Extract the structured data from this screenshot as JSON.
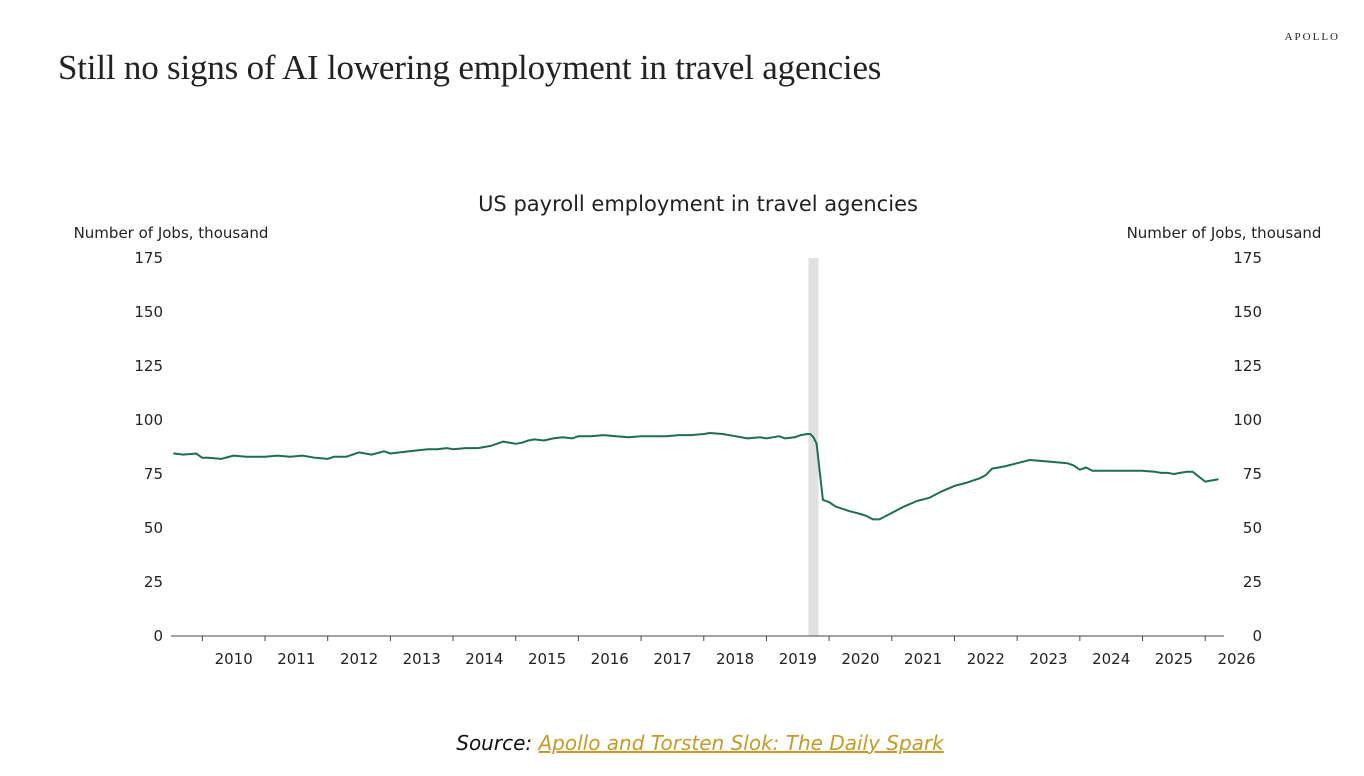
{
  "headline": "Still no signs of AI lowering employment in travel agencies",
  "brand": "APOLLO",
  "source": {
    "prefix": "Source: ",
    "link_text": "Apollo and Torsten Slok: The Daily Spark"
  },
  "colors": {
    "line": "#1f6e4f",
    "recession": "#e0e0e0",
    "link": "#c59a2a"
  },
  "chart_data": {
    "type": "line",
    "title": "US payroll employment in travel agencies",
    "ylabel_left": "Number of Jobs, thousand",
    "ylabel_right": "Number of Jobs, thousand",
    "ylim": [
      0,
      175
    ],
    "yticks": [
      0,
      25,
      50,
      75,
      100,
      125,
      150,
      175
    ],
    "xticks": [
      "2010",
      "2011",
      "2012",
      "2013",
      "2014",
      "2015",
      "2016",
      "2017",
      "2018",
      "2019",
      "2020",
      "2021",
      "2022",
      "2023",
      "2024",
      "2025",
      "2026"
    ],
    "xlim": [
      2009.5,
      2026.3
    ],
    "grid": false,
    "shaded_period": {
      "start": 2019.67,
      "end": 2019.83
    },
    "series": [
      {
        "x": [
          2009.55,
          2009.7,
          2009.9,
          2010.0,
          2010.1,
          2010.3,
          2010.5,
          2010.7,
          2010.9,
          2011.0,
          2011.2,
          2011.4,
          2011.6,
          2011.8,
          2012.0,
          2012.1,
          2012.3,
          2012.5,
          2012.7,
          2012.9,
          2013.0,
          2013.15,
          2013.3,
          2013.45,
          2013.6,
          2013.75,
          2013.9,
          2014.0,
          2014.2,
          2014.4,
          2014.6,
          2014.8,
          2015.0,
          2015.1,
          2015.2,
          2015.3,
          2015.45,
          2015.6,
          2015.75,
          2015.9,
          2016.0,
          2016.2,
          2016.4,
          2016.6,
          2016.8,
          2017.0,
          2017.2,
          2017.4,
          2017.6,
          2017.8,
          2018.0,
          2018.1,
          2018.3,
          2018.5,
          2018.7,
          2018.9,
          2019.0,
          2019.1,
          2019.2,
          2019.3,
          2019.45,
          2019.55,
          2019.65,
          2019.7,
          2019.75,
          2019.8,
          2019.9,
          2020.0,
          2020.1,
          2020.3,
          2020.5,
          2020.6,
          2020.7,
          2020.8,
          2021.0,
          2021.2,
          2021.4,
          2021.6,
          2021.8,
          2022.0,
          2022.2,
          2022.4,
          2022.5,
          2022.6,
          2022.8,
          2023.0,
          2023.2,
          2023.4,
          2023.6,
          2023.8,
          2023.9,
          2024.0,
          2024.1,
          2024.2,
          2024.4,
          2024.6,
          2024.8,
          2025.0,
          2025.2,
          2025.3,
          2025.4,
          2025.5,
          2025.6,
          2025.7,
          2025.8,
          2026.0,
          2026.2
        ],
        "y": [
          84.5,
          84,
          84.5,
          82.5,
          82.5,
          82,
          83.5,
          83,
          83,
          83,
          83.5,
          83,
          83.5,
          82.5,
          82,
          83,
          83,
          85,
          84,
          85.5,
          84.5,
          85,
          85.5,
          86,
          86.5,
          86.5,
          87,
          86.5,
          87,
          87,
          88,
          90,
          89,
          89.5,
          90.5,
          91,
          90.5,
          91.5,
          92,
          91.5,
          92.5,
          92.5,
          93,
          92.5,
          92,
          92.5,
          92.5,
          92.5,
          93,
          93,
          93.5,
          94,
          93.5,
          92.5,
          91.5,
          92,
          91.5,
          92,
          92.5,
          91.5,
          92,
          93,
          93.5,
          93.5,
          92,
          89,
          63,
          62,
          60,
          58,
          56.5,
          55.5,
          54,
          54,
          57,
          60,
          62.5,
          64,
          67,
          69.5,
          71,
          73,
          74.5,
          77.5,
          78.5,
          80,
          81.5,
          81,
          80.5,
          80,
          79,
          77,
          78,
          76.5,
          76.5,
          76.5,
          76.5,
          76.5,
          76,
          75.5,
          75.5,
          75,
          75.5,
          76,
          76,
          71.5,
          72.5
        ]
      }
    ]
  }
}
